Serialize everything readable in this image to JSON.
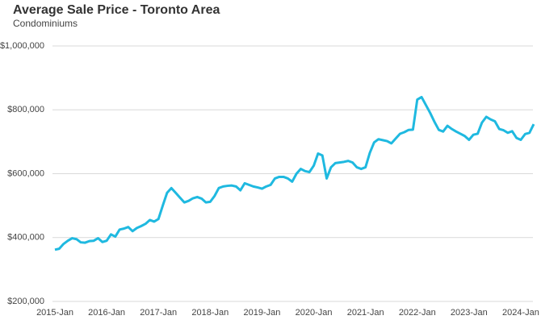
{
  "chart_data": {
    "type": "line",
    "title": "Average Sale Price - Toronto Area",
    "subtitle": "Condominiums",
    "categories": [
      "2015-Jan",
      null,
      null,
      null,
      null,
      null,
      null,
      null,
      null,
      null,
      null,
      null,
      "2016-Jan",
      null,
      null,
      null,
      null,
      null,
      null,
      null,
      null,
      null,
      null,
      null,
      "2017-Jan",
      null,
      null,
      null,
      null,
      null,
      null,
      null,
      null,
      null,
      null,
      null,
      "2018-Jan",
      null,
      null,
      null,
      null,
      null,
      null,
      null,
      null,
      null,
      null,
      null,
      "2019-Jan",
      null,
      null,
      null,
      null,
      null,
      null,
      null,
      null,
      null,
      null,
      null,
      "2020-Jan",
      null,
      null,
      null,
      null,
      null,
      null,
      null,
      null,
      null,
      null,
      null,
      "2021-Jan",
      null,
      null,
      null,
      null,
      null,
      null,
      null,
      null,
      null,
      null,
      null,
      "2022-Jan",
      null,
      null,
      null,
      null,
      null,
      null,
      null,
      null,
      null,
      null,
      null,
      "2023-Jan",
      null,
      null,
      null,
      null,
      null,
      null,
      null,
      null,
      null,
      null,
      null,
      "2024-Jan",
      null,
      null,
      null
    ],
    "values": [
      362000,
      365000,
      380000,
      390000,
      398000,
      395000,
      385000,
      384000,
      389000,
      390000,
      398000,
      386000,
      390000,
      410000,
      403000,
      425000,
      428000,
      433000,
      420000,
      430000,
      436000,
      443000,
      455000,
      450000,
      458000,
      500000,
      540000,
      555000,
      540000,
      525000,
      510000,
      515000,
      523000,
      527000,
      522000,
      510000,
      512000,
      530000,
      555000,
      560000,
      562000,
      563000,
      560000,
      548000,
      570000,
      565000,
      560000,
      557000,
      553000,
      560000,
      565000,
      585000,
      590000,
      590000,
      585000,
      575000,
      600000,
      615000,
      608000,
      605000,
      625000,
      663000,
      657000,
      585000,
      620000,
      633000,
      635000,
      637000,
      640000,
      635000,
      620000,
      615000,
      620000,
      665000,
      698000,
      708000,
      705000,
      702000,
      695000,
      710000,
      725000,
      730000,
      737000,
      738000,
      832000,
      840000,
      815000,
      790000,
      762000,
      737000,
      732000,
      750000,
      740000,
      732000,
      725000,
      718000,
      706000,
      722000,
      725000,
      760000,
      778000,
      770000,
      764000,
      740000,
      736000,
      728000,
      733000,
      712000,
      706000,
      724000,
      728000,
      755000
    ],
    "color": "#1fb9e0",
    "ylim": [
      200000,
      1000000
    ],
    "yticks": [
      {
        "value": 200000,
        "label": "$200,000"
      },
      {
        "value": 400000,
        "label": "$400,000"
      },
      {
        "value": 600000,
        "label": "$600,000"
      },
      {
        "value": 800000,
        "label": "$800,000"
      },
      {
        "value": 1000000,
        "label": "$1,000,000"
      }
    ],
    "grid": true
  }
}
